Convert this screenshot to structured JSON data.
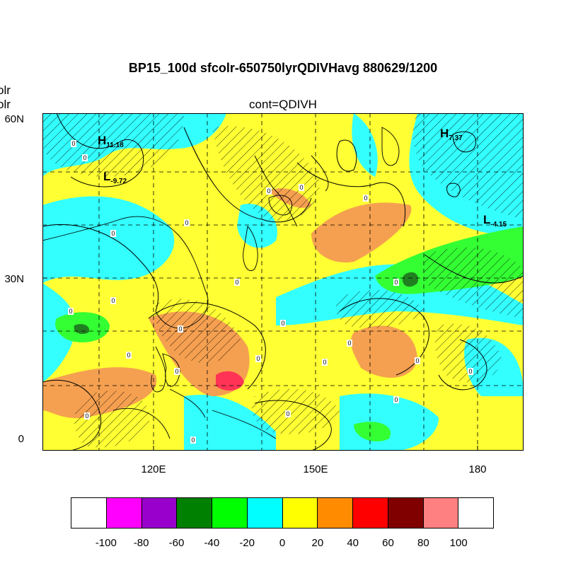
{
  "title": "BP15_100d sfcolr-650750lyrQDIVHavg  880629/1200",
  "subtitle": "cont=QDIVH",
  "side_label_top": "olr",
  "side_label_bottom": "olr",
  "lat_labels": [
    "60N",
    "30N",
    "0"
  ],
  "lon_labels": [
    "120E",
    "150E",
    "180"
  ],
  "extrema": [
    {
      "kind": "H",
      "value": "11.18"
    },
    {
      "kind": "L",
      "value": "-9.72"
    },
    {
      "kind": "H",
      "value": "7.37"
    },
    {
      "kind": "L",
      "value": "-4.15"
    }
  ],
  "contour_label": "0",
  "colorbar": {
    "colors": [
      "#ffffff",
      "#ff00ff",
      "#9900cc",
      "#008000",
      "#00ff00",
      "#00ffff",
      "#ffff00",
      "#ff8c00",
      "#ff0000",
      "#800000",
      "#ff8080",
      "#ffffff"
    ],
    "labels": [
      "-100",
      "-80",
      "-60",
      "-40",
      "-20",
      "0",
      "20",
      "40",
      "60",
      "80",
      "100"
    ]
  },
  "palette": {
    "yellow": "#ffff33",
    "orange": "#f5a050",
    "cyan": "#33ffff",
    "green": "#33ff33",
    "red": "#ff3355",
    "darkgreen": "#208020"
  }
}
